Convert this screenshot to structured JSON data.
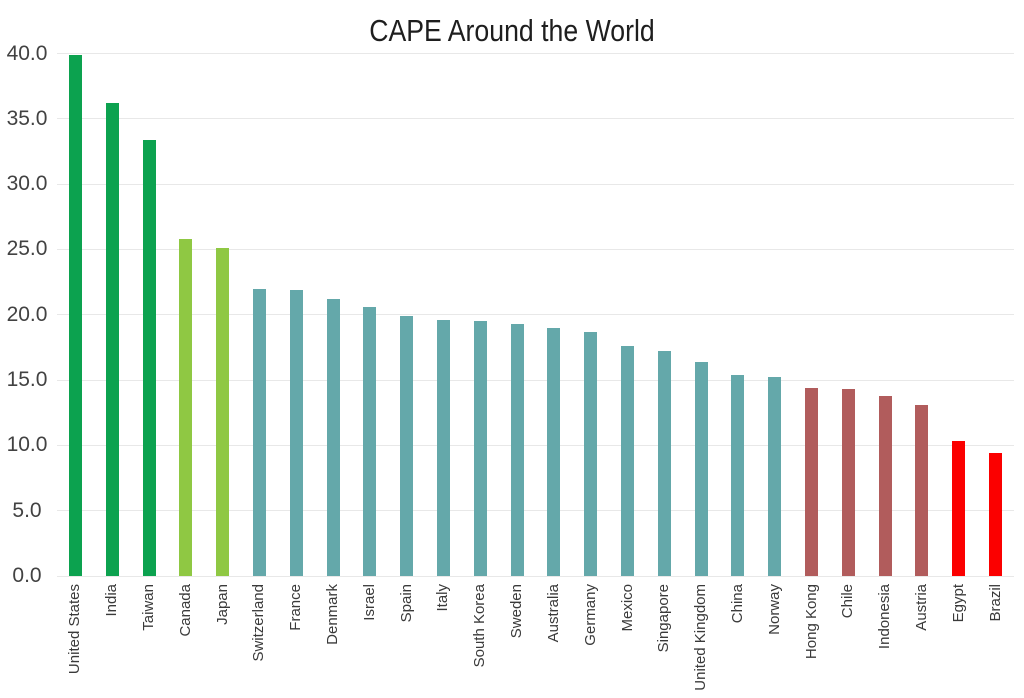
{
  "chart_data": {
    "type": "bar",
    "title": "CAPE Around the World",
    "xlabel": "",
    "ylabel": "",
    "ylim": [
      0,
      40
    ],
    "y_ticks": [
      "0.0",
      "5.0",
      "10.0",
      "15.0",
      "20.0",
      "25.0",
      "30.0",
      "35.0",
      "40.0"
    ],
    "grid": "horizontal-light-gray",
    "legend": "none",
    "background": "#ffffff",
    "categories": [
      "United States",
      "India",
      "Taiwan",
      "Canada",
      "Japan",
      "Switzerland",
      "France",
      "Denmark",
      "Israel",
      "Spain",
      "Italy",
      "South Korea",
      "Sweden",
      "Australia",
      "Germany",
      "Mexico",
      "Singapore",
      "United Kingdom",
      "China",
      "Norway",
      "Hong Kong",
      "Chile",
      "Indonesia",
      "Austria",
      "Egypt",
      "Brazil"
    ],
    "values": [
      39.9,
      36.2,
      33.4,
      25.8,
      25.1,
      22.0,
      21.9,
      21.2,
      20.6,
      19.9,
      19.6,
      19.5,
      19.3,
      19.0,
      18.7,
      17.6,
      17.2,
      16.4,
      15.4,
      15.2,
      14.4,
      14.3,
      13.8,
      13.1,
      10.3,
      9.4
    ],
    "bar_colors": [
      "#0ca24f",
      "#0ca24f",
      "#0ca24f",
      "#8fc843",
      "#8fc843",
      "#64a8aa",
      "#64a8aa",
      "#64a8aa",
      "#64a8aa",
      "#64a8aa",
      "#64a8aa",
      "#64a8aa",
      "#64a8aa",
      "#64a8aa",
      "#64a8aa",
      "#64a8aa",
      "#64a8aa",
      "#64a8aa",
      "#64a8aa",
      "#64a8aa",
      "#b15c5c",
      "#b15c5c",
      "#b15c5c",
      "#b15c5c",
      "#fb0000",
      "#fb0000"
    ],
    "color_palette": {
      "high_green": "#0ca24f",
      "upper_yellow_green": "#8fc843",
      "mid_teal": "#64a8aa",
      "lower_brick": "#b15c5c",
      "low_red": "#fb0000"
    },
    "text_colors": {
      "title": "#1e1e1e",
      "y_ticks": "#424242",
      "x_labels": "#3a3a3a",
      "gridline": "#e8e8e8"
    }
  }
}
